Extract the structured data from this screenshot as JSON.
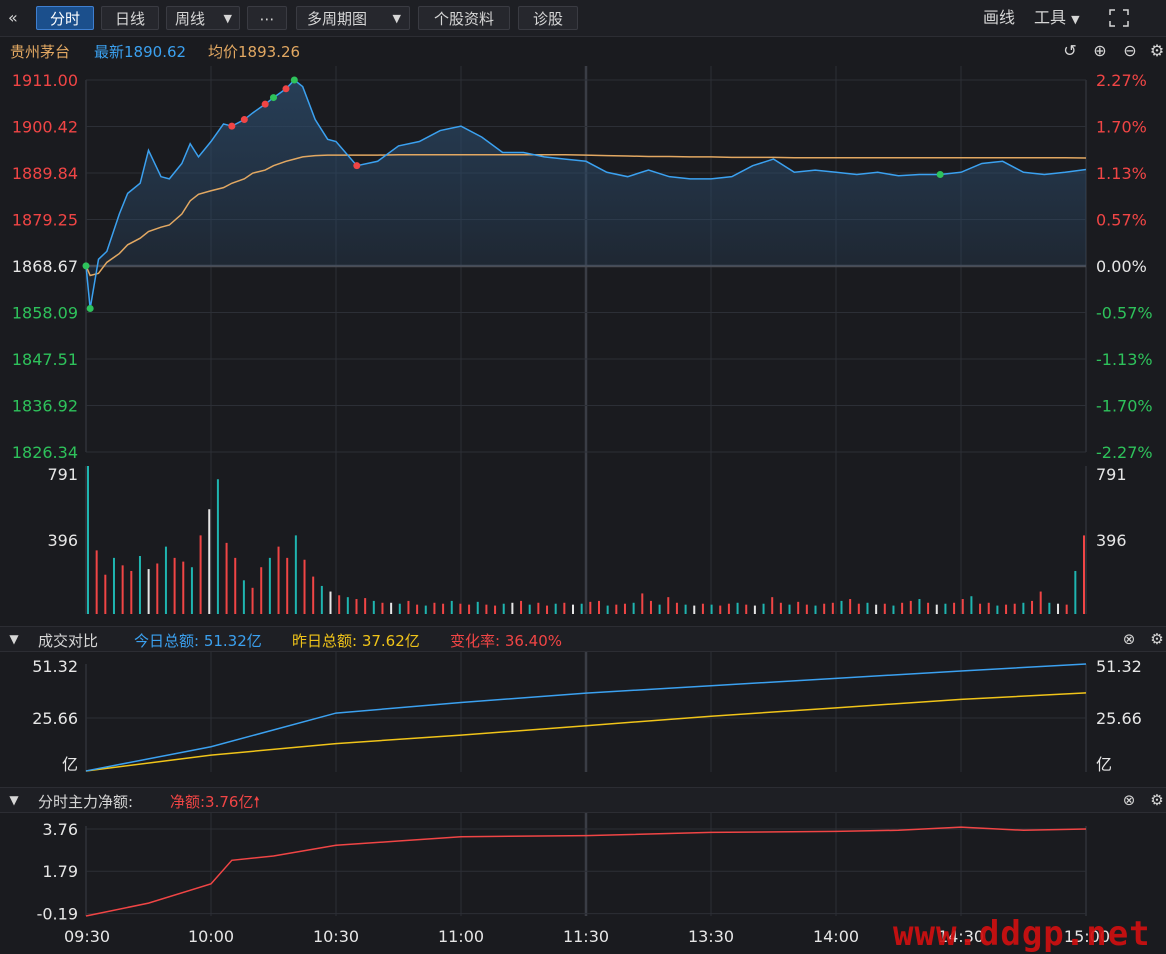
{
  "toolbar": {
    "collapse_icon": "double-chevron-left-icon",
    "tabs": [
      "分时",
      "日线"
    ],
    "period_select": "周线",
    "more": "⋯",
    "multi_period": "多周期图",
    "stock_info": "个股资料",
    "diagnose": "诊股",
    "draw": "画线",
    "tools": "工具",
    "fullscreen_icon": "expand-icon"
  },
  "stock": {
    "name": "贵州茅台",
    "latest_label": "最新",
    "latest": "1890.62",
    "avg_label": "均价",
    "avg": "1893.26"
  },
  "colors": {
    "price": "#3ba1f0",
    "avg": "#e2a862",
    "up": "#f04545",
    "down": "#2ec25b",
    "yellow": "#f0c419",
    "grid": "#2c2f36",
    "bg": "#1a1b1f"
  },
  "price_axis": {
    "left": [
      "1911.00",
      "1900.42",
      "1889.84",
      "1879.25",
      "1868.67",
      "1858.09",
      "1847.51",
      "1836.92",
      "1826.34"
    ],
    "right": [
      "2.27%",
      "1.70%",
      "1.13%",
      "0.57%",
      "0.00%",
      "-0.57%",
      "-1.13%",
      "-1.70%",
      "-2.27%"
    ]
  },
  "volume_axis": {
    "left": [
      "791",
      "396"
    ],
    "right": [
      "791",
      "396"
    ]
  },
  "compare_panel": {
    "title": "成交对比",
    "today_label": "今日总额: 51.32亿",
    "yesterday_label": "昨日总额: 37.62亿",
    "change_label": "变化率: 36.40%",
    "left_axis": [
      "51.32",
      "25.66",
      "亿"
    ],
    "right_axis": [
      "51.32",
      "25.66",
      "亿"
    ]
  },
  "net_panel": {
    "title": "分时主力净额:",
    "net_label": "净额:3.76亿",
    "left_axis": [
      "3.76",
      "1.79",
      "-0.19"
    ]
  },
  "time_axis": [
    "09:30",
    "10:00",
    "10:30",
    "11:00",
    "11:30",
    "13:30",
    "14:00",
    "14:30",
    "15:00"
  ],
  "watermark": "www.ddgp.net",
  "chart_data": [
    {
      "type": "line",
      "title": "",
      "x": [
        "09:30",
        "09:31",
        "09:33",
        "09:35",
        "09:38",
        "09:40",
        "09:43",
        "09:45",
        "09:48",
        "09:50",
        "09:53",
        "09:55",
        "09:57",
        "10:00",
        "10:03",
        "10:05",
        "10:08",
        "10:10",
        "10:13",
        "10:15",
        "10:18",
        "10:20",
        "10:22",
        "10:25",
        "10:28",
        "10:30",
        "10:35",
        "10:40",
        "10:45",
        "10:50",
        "10:55",
        "11:00",
        "11:05",
        "11:10",
        "11:15",
        "11:20",
        "11:25",
        "11:30",
        "13:05",
        "13:10",
        "13:15",
        "13:20",
        "13:25",
        "13:30",
        "13:35",
        "13:40",
        "13:45",
        "13:50",
        "13:55",
        "14:00",
        "14:05",
        "14:10",
        "14:15",
        "14:20",
        "14:25",
        "14:30",
        "14:35",
        "14:40",
        "14:45",
        "14:50",
        "14:55",
        "15:00"
      ],
      "series": [
        {
          "name": "最新",
          "values": [
            1868.7,
            1859.0,
            1870.2,
            1872.0,
            1880.5,
            1885.2,
            1887.5,
            1895.0,
            1889.0,
            1888.5,
            1892.0,
            1896.5,
            1893.5,
            1897.0,
            1901.0,
            1900.5,
            1902.0,
            1903.5,
            1905.5,
            1907.0,
            1909.0,
            1911.0,
            1909.5,
            1902.0,
            1897.5,
            1897.0,
            1891.5,
            1892.5,
            1896.0,
            1897.0,
            1899.5,
            1900.5,
            1898.0,
            1894.5,
            1894.5,
            1893.5,
            1893.0,
            1892.5,
            1890.0,
            1889.0,
            1890.5,
            1889.0,
            1888.5,
            1888.5,
            1889.0,
            1891.5,
            1893.0,
            1890.0,
            1890.5,
            1890.0,
            1889.5,
            1890.0,
            1889.2,
            1889.5,
            1889.5,
            1890.0,
            1892.0,
            1892.5,
            1890.0,
            1889.5,
            1890.0,
            1890.62
          ]
        },
        {
          "name": "均价",
          "values": [
            1868.7,
            1866.5,
            1867.0,
            1869.5,
            1871.5,
            1873.5,
            1875.0,
            1876.5,
            1877.5,
            1878.0,
            1880.5,
            1883.5,
            1885.0,
            1885.8,
            1886.5,
            1887.5,
            1888.5,
            1889.8,
            1890.5,
            1891.5,
            1892.5,
            1893.0,
            1893.5,
            1893.8,
            1893.9,
            1893.9,
            1893.9,
            1893.9,
            1894.0,
            1894.0,
            1894.0,
            1894.0,
            1894.0,
            1894.0,
            1894.0,
            1894.0,
            1894.0,
            1893.9,
            1893.8,
            1893.7,
            1893.6,
            1893.6,
            1893.5,
            1893.5,
            1893.4,
            1893.4,
            1893.4,
            1893.3,
            1893.3,
            1893.3,
            1893.3,
            1893.3,
            1893.3,
            1893.3,
            1893.3,
            1893.3,
            1893.3,
            1893.3,
            1893.3,
            1893.3,
            1893.3,
            1893.26
          ]
        }
      ],
      "ylim": [
        1826.34,
        1911.0
      ],
      "prev_close": 1868.67
    },
    {
      "type": "bar",
      "title": "",
      "values": [
        791,
        340,
        210,
        300,
        260,
        230,
        310,
        240,
        270,
        360,
        300,
        280,
        250,
        420,
        560,
        720,
        380,
        300,
        180,
        140,
        250,
        300,
        360,
        300,
        420,
        290,
        200,
        150,
        120,
        100,
        90,
        80,
        85,
        70,
        60,
        60,
        55,
        70,
        50,
        45,
        60,
        55,
        70,
        55,
        50,
        65,
        50,
        45,
        55,
        60,
        70,
        50,
        60,
        45,
        55,
        60,
        50,
        55,
        65,
        70,
        45,
        50,
        55,
        60,
        110,
        70,
        50,
        90,
        60,
        50,
        45,
        55,
        50,
        45,
        55,
        60,
        50,
        45,
        55,
        90,
        60,
        50,
        65,
        50,
        45,
        55,
        60,
        70,
        80,
        55,
        60,
        50,
        55,
        45,
        60,
        70,
        80,
        60,
        50,
        55,
        60,
        80,
        95,
        55,
        60,
        45,
        50,
        55,
        60,
        70,
        120,
        60,
        55,
        50,
        230,
        420
      ],
      "ylim": [
        0,
        791
      ]
    },
    {
      "type": "line",
      "title": "",
      "x": [
        "09:30",
        "10:00",
        "10:30",
        "11:00",
        "11:30",
        "13:30",
        "14:00",
        "14:30",
        "15:00"
      ],
      "series": [
        {
          "name": "今日总额",
          "values": [
            0.5,
            12.0,
            28.0,
            33.0,
            37.5,
            41.0,
            44.5,
            48.0,
            51.32
          ]
        },
        {
          "name": "昨日总额",
          "values": [
            0.5,
            8.0,
            13.5,
            17.5,
            22.0,
            26.5,
            30.5,
            34.5,
            37.62
          ]
        }
      ],
      "ylim": [
        0,
        51.32
      ]
    },
    {
      "type": "line",
      "title": "",
      "x": [
        "09:30",
        "09:45",
        "10:00",
        "10:05",
        "10:15",
        "10:30",
        "10:45",
        "11:00",
        "11:30",
        "13:30",
        "14:00",
        "14:15",
        "14:30",
        "14:45",
        "15:00"
      ],
      "series": [
        {
          "name": "净额",
          "values": [
            -0.3,
            0.3,
            1.2,
            2.3,
            2.5,
            3.0,
            3.2,
            3.4,
            3.45,
            3.6,
            3.65,
            3.7,
            3.85,
            3.7,
            3.76
          ]
        }
      ],
      "ylim": [
        -0.3,
        3.9
      ]
    }
  ]
}
